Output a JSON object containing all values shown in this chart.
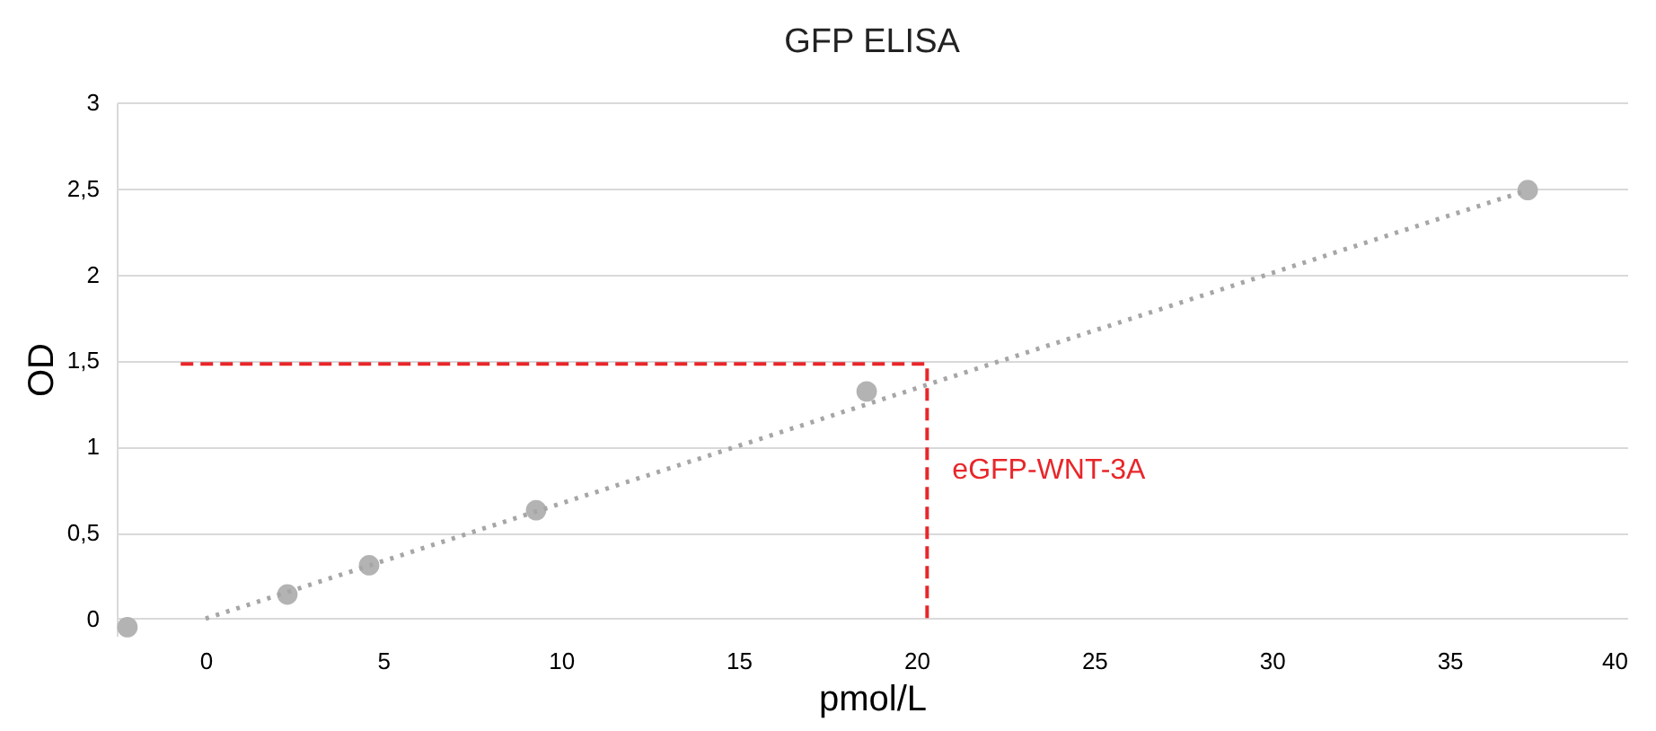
{
  "chart_data": {
    "type": "scatter",
    "title": "GFP ELISA",
    "xlabel": "pmol/L",
    "ylabel": "OD",
    "x": [
      -2.2,
      2.3,
      4.6,
      9.3,
      18.6,
      37.2
    ],
    "series": [
      {
        "color": "#b3b3b3",
        "values": [
          -0.05,
          0.14,
          0.31,
          0.63,
          1.32,
          2.49
        ],
        "marker": "circle"
      },
      {
        "type": "line",
        "color": "#a6a6a6",
        "x": [
          0,
          37.2
        ],
        "values": [
          0,
          2.49
        ],
        "line_style": "dotted"
      },
      {
        "type": "line",
        "color": "#e8262a",
        "x": [
          -0.7,
          20.3,
          20.3
        ],
        "values": [
          1.48,
          1.48,
          0
        ],
        "line_style": "dashed"
      }
    ],
    "annotations": [
      "eGFP-WNT-3A"
    ],
    "xlim": [
      -2.5,
      40
    ],
    "xticks": [
      0,
      5,
      10,
      15,
      20,
      25,
      30,
      35,
      40
    ],
    "ylim": [
      -0.1,
      3
    ],
    "yticks": [
      0,
      {
        "value": 0.5,
        "label": "0,5"
      },
      1,
      {
        "value": 1.5,
        "label": "1,5"
      },
      2,
      {
        "value": 2.5,
        "label": "2,5"
      },
      3
    ],
    "grid": "y"
  }
}
